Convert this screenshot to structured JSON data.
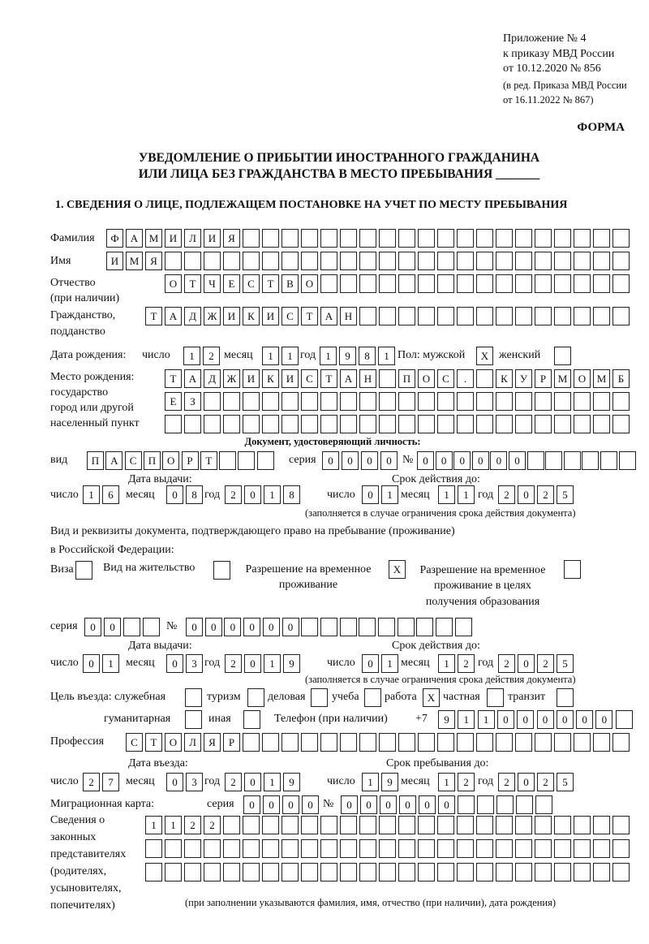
{
  "header": {
    "appendix": [
      "Приложение № 4",
      "к приказу МВД России",
      "от 10.12.2020 № 856"
    ],
    "revision": [
      "(в ред. Приказа МВД России",
      "от 16.11.2022 № 867)"
    ],
    "form_label": "ФОРМА",
    "title_line1": "УВЕДОМЛЕНИЕ О ПРИБЫТИИ ИНОСТРАННОГО ГРАЖДАНИНА",
    "title_line2": "ИЛИ ЛИЦА БЕЗ ГРАЖДАНСТВА В МЕСТО ПРЕБЫВАНИЯ _______",
    "section1": "1. СВЕДЕНИЯ О ЛИЦЕ, ПОДЛЕЖАЩЕМ ПОСТАНОВКЕ НА УЧЕТ ПО МЕСТУ ПРЕБЫВАНИЯ"
  },
  "labels": {
    "surname": "Фамилия",
    "name": "Имя",
    "patronymic": "Отчество",
    "patronymic_note": "(при наличии)",
    "citizenship": "Гражданство,",
    "citizenship2": "подданство",
    "birth_date": "Дата рождения:",
    "day": "число",
    "month": "месяц",
    "year": "год",
    "sex": "Пол: мужской",
    "female": "женский",
    "birth_place": [
      "Место рождения:",
      "государство",
      "город или другой",
      "населенный пункт"
    ],
    "id_doc": "Документ, удостоверяющий личность:",
    "kind": "вид",
    "series": "серия",
    "number": "№",
    "issue_date": "Дата выдачи:",
    "valid_until": "Срок действия до:",
    "validity_note": "(заполняется в случае ограничения срока действия документа)",
    "residence_doc1": "Вид и реквизиты документа, подтверждающего право на пребывание (проживание)",
    "residence_doc2": "в Российской Федерации:",
    "visa": "Виза",
    "residence_permit": "Вид на жительство",
    "temp_residence": [
      "Разрешение на временное",
      "проживание"
    ],
    "temp_residence_edu": [
      "Разрешение на временное",
      "проживание в целях",
      "получения образования"
    ],
    "purpose": "Цель въезда: служебная",
    "tourism": "туризм",
    "business": "деловая",
    "study": "учеба",
    "work": "работа",
    "private": "частная",
    "transit": "транзит",
    "humanitarian": "гуманитарная",
    "other": "иная",
    "phone": "Телефон (при наличии)",
    "phone_prefix": "+7",
    "profession": "Профессия",
    "entry_date": "Дата въезда:",
    "stay_until": "Срок пребывания до:",
    "migration_card": "Миграционная карта:",
    "representatives": [
      "Сведения о",
      "законных",
      "представителях",
      "(родителях,",
      "усыновителях,",
      "попечителях)"
    ],
    "representatives_note": "(при заполнении указываются фамилия, имя, отчество (при наличии), дата рождения)"
  },
  "form": {
    "surname": "ФАМИЛИЯ",
    "name": "ИМЯ",
    "patronymic": "ОТЧЕСТВО",
    "citizenship": "ТАДЖИКИСТАН",
    "birth": {
      "day": "12",
      "month": "11",
      "year": "1981"
    },
    "sex_male": "X",
    "sex_female": "",
    "birth_place": [
      "ТАДЖИКИСТАН ПОС. КУРМОМБ",
      "ЕЗ",
      ""
    ],
    "id_doc": {
      "kind": "ПАСПОРТ",
      "series": "0000",
      "number": "000000",
      "issue": {
        "day": "16",
        "month": "08",
        "year": "2018"
      },
      "valid": {
        "day": "01",
        "month": "11",
        "year": "2025"
      }
    },
    "residence": {
      "visa": "",
      "residence_permit": "",
      "temp_residence": "X",
      "temp_residence_edu": "",
      "series": "00",
      "number": "000000",
      "issue": {
        "day": "01",
        "month": "03",
        "year": "2019"
      },
      "valid": {
        "day": "01",
        "month": "12",
        "year": "2025"
      }
    },
    "purpose": {
      "service": "",
      "tourism": "",
      "business": "",
      "study": "",
      "work": "X",
      "private": "",
      "transit": "",
      "humanitarian": "",
      "other": ""
    },
    "phone": "911000000",
    "profession": "СТОЛЯР",
    "entry": {
      "day": "27",
      "month": "03",
      "year": "2019"
    },
    "stay_until": {
      "day": "19",
      "month": "12",
      "year": "2025"
    },
    "migration_card": {
      "series": "0000",
      "number": "000000"
    },
    "representatives": [
      "1122",
      "",
      ""
    ]
  }
}
